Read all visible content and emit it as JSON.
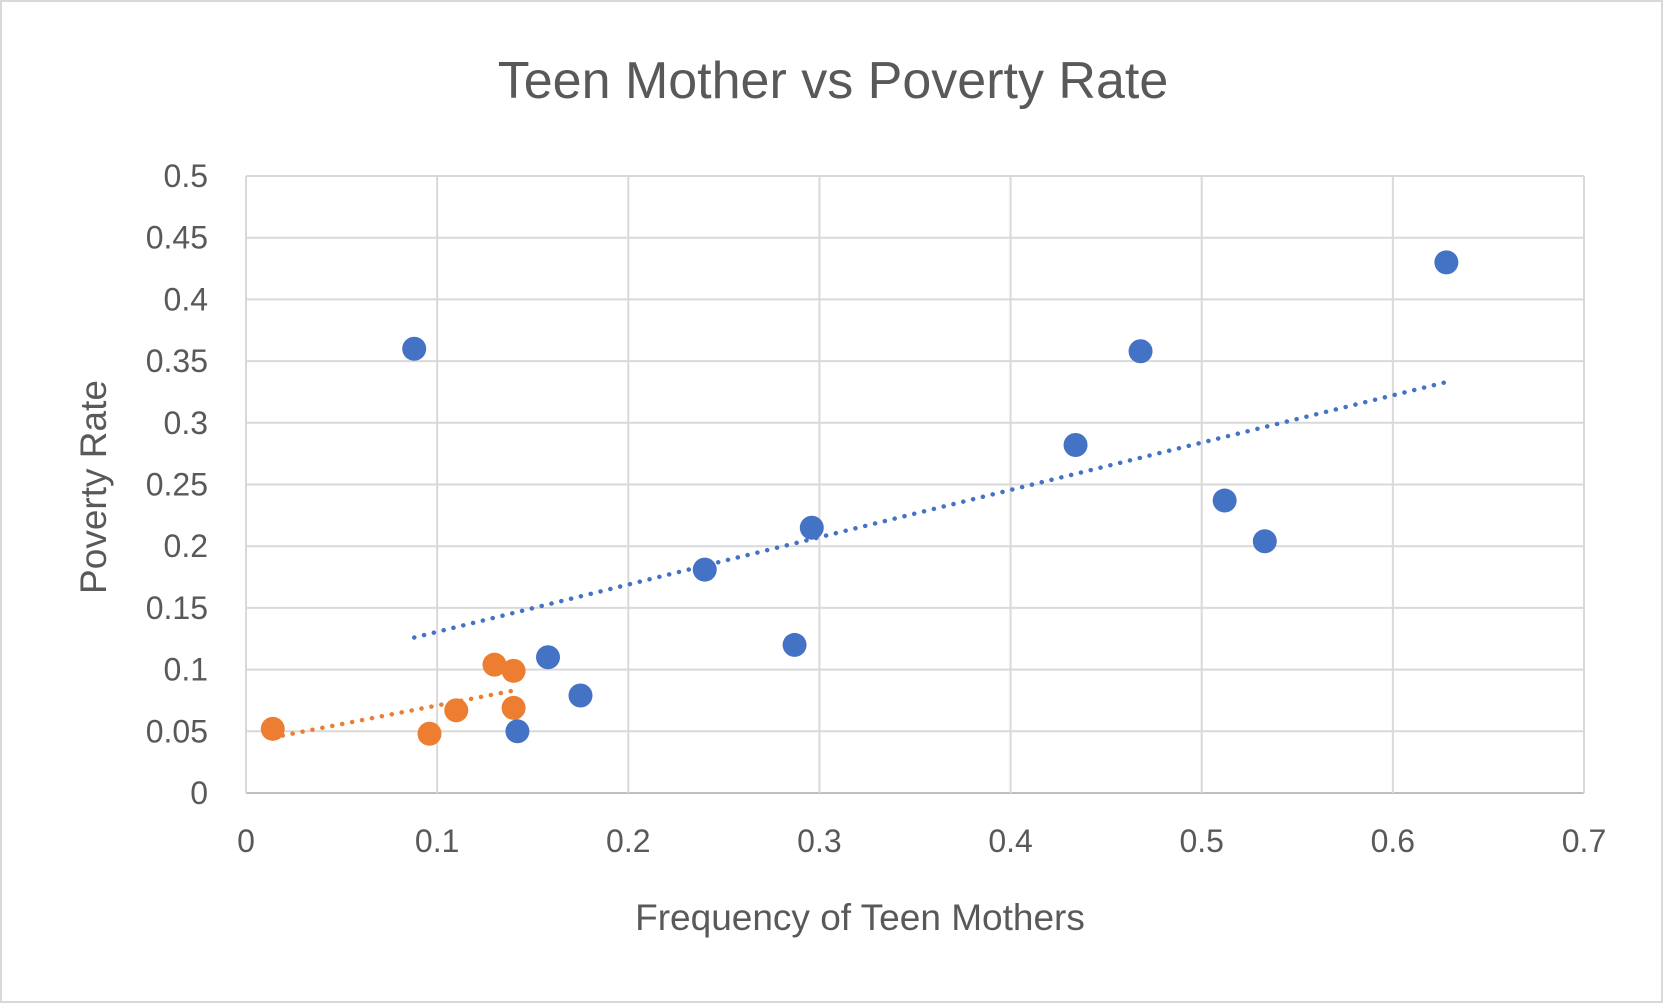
{
  "chart_data": {
    "type": "scatter",
    "title": "Teen Mother vs Poverty Rate",
    "xlabel": "Frequency of Teen Mothers",
    "ylabel": "Poverty Rate",
    "xlim": [
      0,
      0.7
    ],
    "ylim": [
      0,
      0.5
    ],
    "x_ticks": [
      "0",
      "0.1",
      "0.2",
      "0.3",
      "0.4",
      "0.5",
      "0.6",
      "0.7"
    ],
    "y_ticks": [
      "0",
      "0.05",
      "0.1",
      "0.15",
      "0.2",
      "0.25",
      "0.3",
      "0.35",
      "0.4",
      "0.45",
      "0.5"
    ],
    "grid": true,
    "series": [
      {
        "color": "#4472c4",
        "points": [
          {
            "x": 0.088,
            "y": 0.36
          },
          {
            "x": 0.142,
            "y": 0.05
          },
          {
            "x": 0.158,
            "y": 0.11
          },
          {
            "x": 0.175,
            "y": 0.079
          },
          {
            "x": 0.24,
            "y": 0.181
          },
          {
            "x": 0.287,
            "y": 0.12
          },
          {
            "x": 0.296,
            "y": 0.215
          },
          {
            "x": 0.434,
            "y": 0.282
          },
          {
            "x": 0.468,
            "y": 0.358
          },
          {
            "x": 0.512,
            "y": 0.237
          },
          {
            "x": 0.533,
            "y": 0.204
          },
          {
            "x": 0.628,
            "y": 0.43
          }
        ],
        "trendline": {
          "style": "dotted",
          "from": {
            "x": 0.088,
            "y": 0.126
          },
          "to": {
            "x": 0.628,
            "y": 0.333
          }
        }
      },
      {
        "color": "#ed7d31",
        "points": [
          {
            "x": 0.014,
            "y": 0.052
          },
          {
            "x": 0.096,
            "y": 0.048
          },
          {
            "x": 0.11,
            "y": 0.067
          },
          {
            "x": 0.13,
            "y": 0.104
          },
          {
            "x": 0.14,
            "y": 0.099
          },
          {
            "x": 0.14,
            "y": 0.069
          }
        ],
        "trendline": {
          "style": "dotted",
          "from": {
            "x": 0.014,
            "y": 0.045
          },
          "to": {
            "x": 0.14,
            "y": 0.083
          }
        }
      }
    ]
  }
}
